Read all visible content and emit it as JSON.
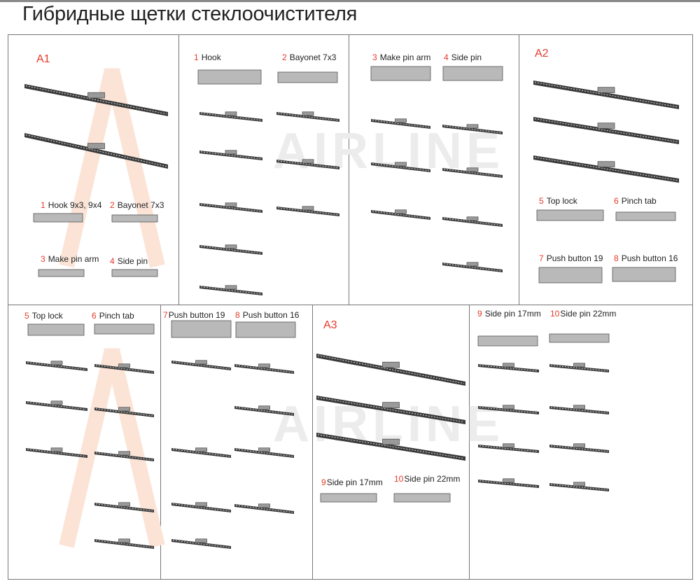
{
  "title": "Гибридные щетки стеклоочистителя",
  "watermark": "AIRLINE",
  "colors": {
    "accent": "#e53a2a",
    "blade": "#3a3a3a",
    "connector": "#b9b9b9"
  },
  "sections": {
    "a1": "A1",
    "a2": "A2",
    "a3": "A3"
  },
  "adapters": {
    "a1": [
      {
        "num": "1",
        "label": "Hook 9x3, 9x4"
      },
      {
        "num": "2",
        "label": "Bayonet 7x3"
      },
      {
        "num": "3",
        "label": "Make pin arm"
      },
      {
        "num": "4",
        "label": "Side pin"
      }
    ],
    "top": [
      {
        "num": "1",
        "label": "Hook"
      },
      {
        "num": "2",
        "label": "Bayonet 7x3"
      },
      {
        "num": "3",
        "label": "Make pin arm"
      },
      {
        "num": "4",
        "label": "Side pin"
      }
    ],
    "a2": [
      {
        "num": "5",
        "label": "Top lock"
      },
      {
        "num": "6",
        "label": "Pinch tab"
      },
      {
        "num": "7",
        "label": "Push button 19"
      },
      {
        "num": "8",
        "label": "Push button 16"
      }
    ],
    "bottom": [
      {
        "num": "5",
        "label": "Top lock"
      },
      {
        "num": "6",
        "label": "Pinch tab"
      },
      {
        "num": "7",
        "label": "Push button 19"
      },
      {
        "num": "8",
        "label": "Push button 16"
      },
      {
        "num": "9",
        "label": "Side pin 17mm"
      },
      {
        "num": "10",
        "label": "Side pin 22mm"
      }
    ],
    "a3": [
      {
        "num": "9",
        "label": "Side pin 17mm"
      },
      {
        "num": "10",
        "label": "Side pin 22mm"
      }
    ]
  }
}
